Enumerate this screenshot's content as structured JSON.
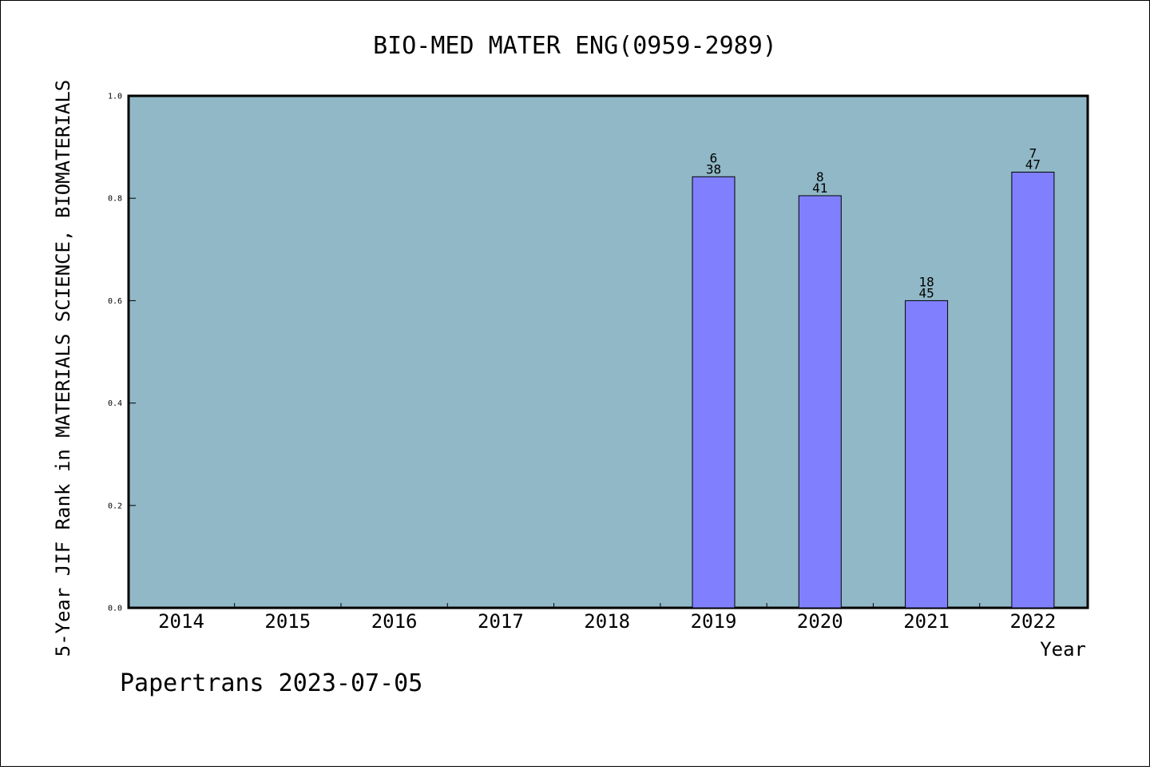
{
  "chart_data": {
    "type": "bar",
    "title": "BIO-MED MATER ENG(0959-2989)",
    "xlabel": "Year",
    "ylabel": "5-Year JIF Rank in MATERIALS SCIENCE, BIOMATERIALS",
    "ylim": [
      0,
      1.0
    ],
    "yticks": [
      "0.0",
      "0.2",
      "0.4",
      "0.6",
      "0.8",
      "1.0"
    ],
    "categories": [
      "2014",
      "2015",
      "2016",
      "2017",
      "2018",
      "2019",
      "2020",
      "2021",
      "2022"
    ],
    "values": [
      null,
      null,
      null,
      null,
      null,
      0.842,
      0.805,
      0.6,
      0.851
    ],
    "rank": [
      null,
      null,
      null,
      null,
      null,
      "6",
      "8",
      "18",
      "7"
    ],
    "total": [
      null,
      null,
      null,
      null,
      null,
      "38",
      "41",
      "45",
      "47"
    ],
    "plot_background": "#90b8c6",
    "bar_color": "#8080ff",
    "grid": false
  },
  "footer": "Papertrans 2023-07-05"
}
